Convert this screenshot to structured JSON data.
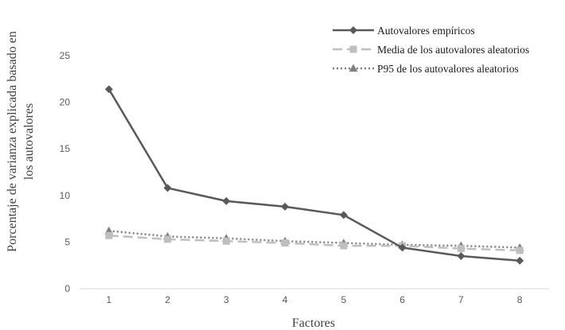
{
  "chart_data": {
    "type": "line",
    "title": "",
    "xlabel": "Factores",
    "ylabel": [
      "Porcentaje de varianza explicada basado  en",
      "los autovalores"
    ],
    "x": [
      1,
      2,
      3,
      4,
      5,
      6,
      7,
      8
    ],
    "x_tick_labels": [
      "1",
      "2",
      "3",
      "4",
      "5",
      "6",
      "7",
      "8"
    ],
    "ylim": [
      0,
      25
    ],
    "y_ticks": [
      0,
      5,
      10,
      15,
      20,
      25
    ],
    "y_tick_labels": [
      "0",
      "5",
      "10",
      "15",
      "20",
      "25"
    ],
    "grid": false,
    "legend_position": "top-right",
    "series": [
      {
        "name": "Autovalores empíricos",
        "values": [
          21.4,
          10.8,
          9.4,
          8.8,
          7.9,
          4.4,
          3.5,
          3.0
        ],
        "color": "#595959",
        "line": "solid",
        "marker": "diamond"
      },
      {
        "name": "Media de los autovalores aleatorios",
        "values": [
          5.7,
          5.3,
          5.1,
          4.9,
          4.6,
          4.6,
          4.3,
          4.1
        ],
        "color": "#bfbfbf",
        "line": "dashed",
        "marker": "square"
      },
      {
        "name": "P95 de los autovalores aleatorios",
        "values": [
          6.2,
          5.6,
          5.4,
          5.1,
          4.9,
          4.7,
          4.6,
          4.4
        ],
        "color": "#808080",
        "line": "dotted",
        "marker": "triangle"
      }
    ]
  }
}
